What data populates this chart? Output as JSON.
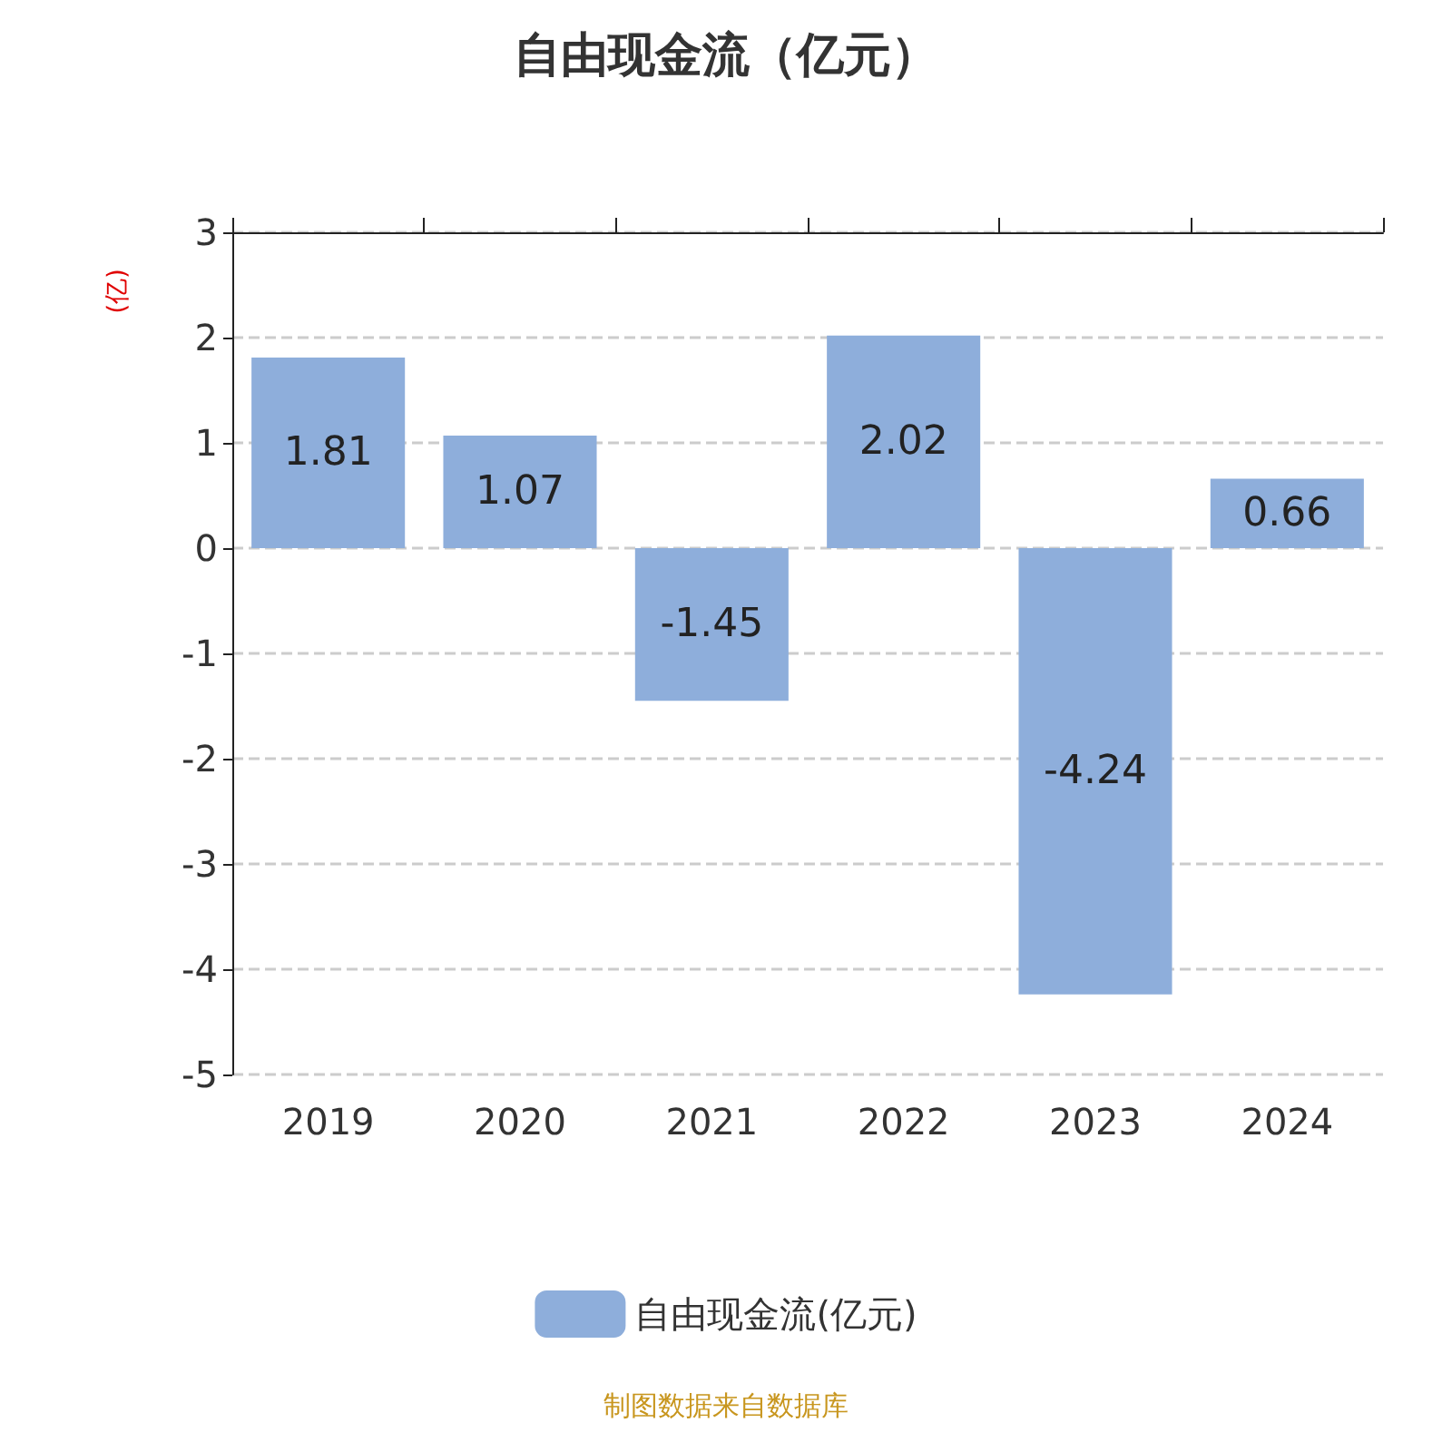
{
  "chart_data": {
    "type": "bar",
    "title": "自由现金流（亿元）",
    "ylabel": "(亿)",
    "categories": [
      "2019",
      "2020",
      "2021",
      "2022",
      "2023",
      "2024"
    ],
    "series": [
      {
        "name": "自由现金流(亿元)",
        "color": "#8eaedb",
        "values": [
          1.81,
          1.07,
          -1.45,
          2.02,
          -4.24,
          0.66
        ]
      }
    ],
    "ylim": [
      -5,
      3
    ],
    "yticks": [
      -5,
      -4,
      -3,
      -2,
      -1,
      0,
      1,
      2,
      3
    ],
    "grid": "y",
    "legend": "bottom",
    "data_labels": true,
    "annotations": [
      "制图数据来自数据库"
    ]
  }
}
